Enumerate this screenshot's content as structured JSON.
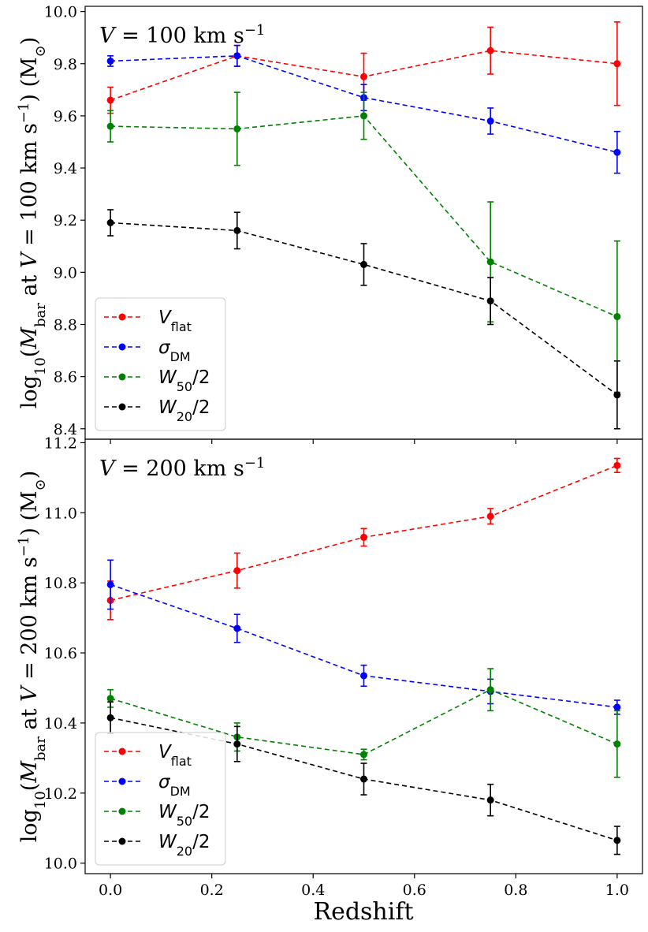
{
  "chart_data": [
    {
      "type": "line",
      "title": "V = 100 km s⁻¹",
      "ylabel": "log10(Mbar at V = 100 km s⁻¹) (M⊙)",
      "xlabel": "",
      "ylim": [
        8.36,
        10.02
      ],
      "yticks": [
        "8.4",
        "8.6",
        "8.8",
        "9.0",
        "9.2",
        "9.4",
        "9.6",
        "9.8",
        "10.0"
      ],
      "x": [
        0.0,
        0.25,
        0.5,
        0.75,
        1.0
      ],
      "series": [
        {
          "name": "Vflat",
          "color": "#ff0000",
          "values": [
            9.66,
            9.83,
            9.75,
            9.85,
            9.8
          ],
          "err": [
            0.05,
            0.04,
            0.09,
            0.09,
            0.16
          ]
        },
        {
          "name": "σDM",
          "color": "#0000ff",
          "values": [
            9.81,
            9.83,
            9.67,
            9.58,
            9.46
          ],
          "err": [
            0.02,
            0.04,
            0.05,
            0.05,
            0.08
          ]
        },
        {
          "name": "W50/2",
          "color": "#008000",
          "values": [
            9.56,
            9.55,
            9.6,
            9.04,
            8.83
          ],
          "err": [
            0.06,
            0.14,
            0.09,
            0.23,
            0.29
          ]
        },
        {
          "name": "W20/2",
          "color": "#000000",
          "values": [
            9.19,
            9.16,
            9.03,
            8.89,
            8.53
          ],
          "err": [
            0.05,
            0.07,
            0.08,
            0.09,
            0.13
          ]
        }
      ],
      "legend": "bottom-left",
      "grid": false
    },
    {
      "type": "line",
      "title": "V = 200 km s⁻¹",
      "ylabel": "log10(Mbar at V = 200 km s⁻¹) (M⊙)",
      "xlabel": "Redshift",
      "ylim": [
        9.97,
        11.21
      ],
      "yticks": [
        "10.0",
        "10.2",
        "10.4",
        "10.6",
        "10.8",
        "11.0",
        "11.2"
      ],
      "xticks": [
        "0.0",
        "0.2",
        "0.4",
        "0.6",
        "0.8",
        "1.0"
      ],
      "x": [
        0.0,
        0.25,
        0.5,
        0.75,
        1.0
      ],
      "series": [
        {
          "name": "Vflat",
          "color": "#ff0000",
          "values": [
            10.75,
            10.835,
            10.93,
            10.99,
            11.135
          ],
          "err": [
            0.055,
            0.05,
            0.025,
            0.022,
            0.02
          ]
        },
        {
          "name": "σDM",
          "color": "#0000ff",
          "values": [
            10.795,
            10.67,
            10.535,
            10.49,
            10.445
          ],
          "err": [
            0.07,
            0.04,
            0.03,
            0.035,
            0.02
          ]
        },
        {
          "name": "W50/2",
          "color": "#008000",
          "values": [
            10.47,
            10.36,
            10.31,
            10.495,
            10.34
          ],
          "err": [
            0.025,
            0.04,
            0.015,
            0.06,
            0.095
          ]
        },
        {
          "name": "W20/2",
          "color": "#000000",
          "values": [
            10.415,
            10.34,
            10.24,
            10.18,
            10.065
          ],
          "err": [
            0.045,
            0.05,
            0.045,
            0.045,
            0.04
          ]
        }
      ],
      "legend": "bottom-left",
      "grid": false
    }
  ]
}
